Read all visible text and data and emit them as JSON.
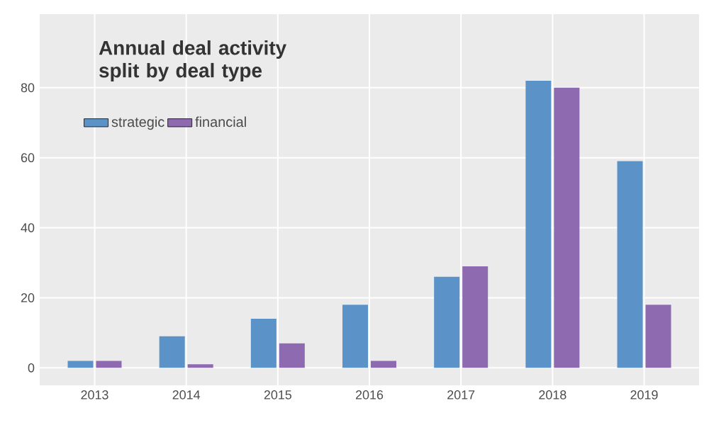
{
  "chart_data": {
    "type": "bar",
    "title": "Annual deal activity\nsplit by deal type",
    "categories": [
      "2013",
      "2014",
      "2015",
      "2016",
      "2017",
      "2018",
      "2019"
    ],
    "series": [
      {
        "name": "strategic",
        "color": "#5b93c8",
        "values": [
          2,
          9,
          14,
          18,
          26,
          82,
          59
        ]
      },
      {
        "name": "financial",
        "color": "#8e6bb0",
        "values": [
          2,
          1,
          7,
          2,
          29,
          80,
          18
        ]
      }
    ],
    "ylim": [
      -5,
      101
    ],
    "yticks": [
      0,
      20,
      40,
      60,
      80
    ],
    "grid": true,
    "legend": "top left"
  }
}
